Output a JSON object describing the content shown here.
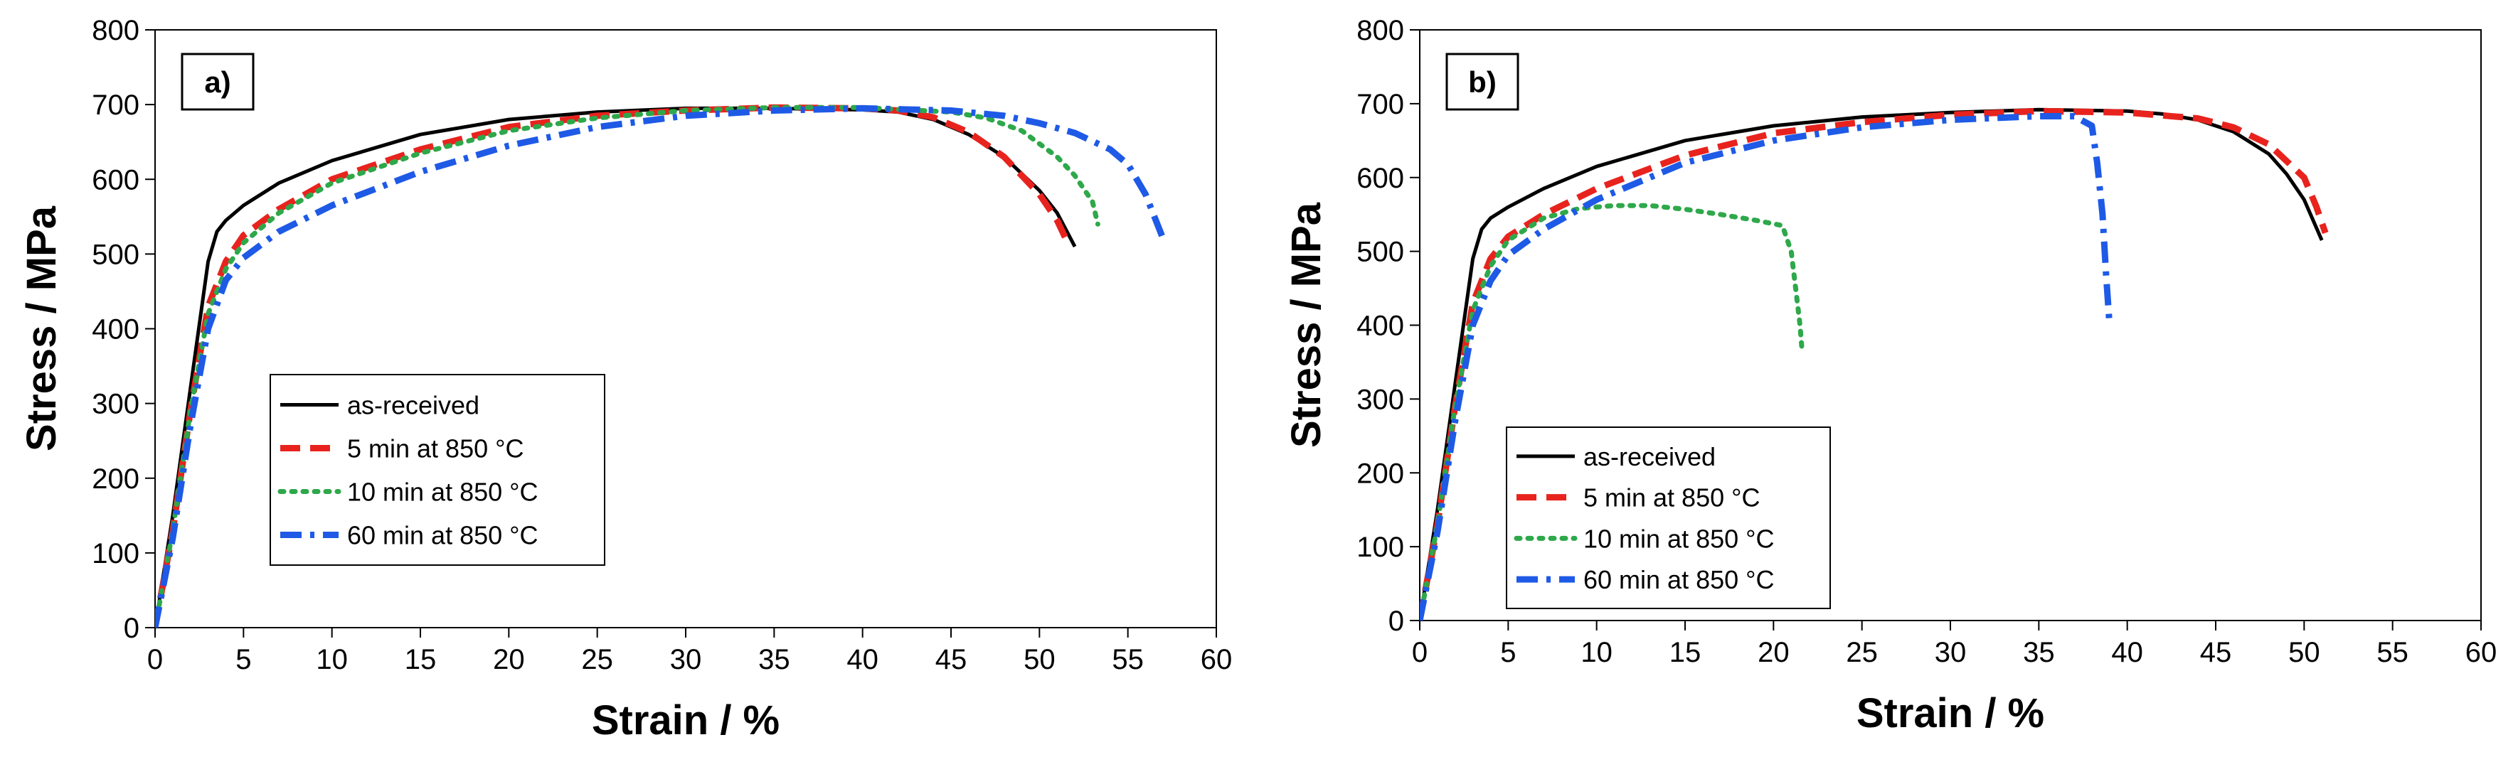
{
  "chart_data": [
    {
      "type": "line",
      "panel_label": "a)",
      "xlabel": "Strain / %",
      "ylabel": "Stress / MPa",
      "xlim": [
        0,
        60
      ],
      "ylim": [
        0,
        800
      ],
      "xticks": [
        "0",
        "5",
        "10",
        "15",
        "20",
        "25",
        "30",
        "35",
        "40",
        "45",
        "50",
        "55",
        "60"
      ],
      "yticks": [
        "0",
        "100",
        "200",
        "300",
        "400",
        "500",
        "600",
        "700",
        "800"
      ],
      "legend_position": "bottom-left",
      "series": [
        {
          "name": "as-received",
          "color": "#000000",
          "style": "solid",
          "x": [
            0,
            1,
            2,
            3,
            3.5,
            4,
            5,
            7,
            10,
            15,
            20,
            25,
            30,
            35,
            40,
            42,
            44,
            46,
            48,
            50,
            51,
            52
          ],
          "y": [
            0,
            150,
            320,
            490,
            530,
            545,
            565,
            595,
            625,
            660,
            680,
            690,
            695,
            695,
            693,
            690,
            680,
            660,
            630,
            585,
            555,
            510
          ]
        },
        {
          "name": "5 min at 850 °C",
          "color": "#e8231e",
          "style": "dash",
          "x": [
            0,
            1,
            2,
            3,
            4,
            5,
            7,
            10,
            15,
            20,
            25,
            30,
            35,
            40,
            42,
            44,
            46,
            48,
            50,
            51,
            51.5
          ],
          "y": [
            0,
            130,
            290,
            430,
            490,
            525,
            560,
            600,
            640,
            670,
            685,
            692,
            696,
            695,
            692,
            683,
            663,
            630,
            580,
            545,
            520
          ]
        },
        {
          "name": "10 min at 850 °C",
          "color": "#2ea84a",
          "style": "dot",
          "x": [
            0,
            1,
            2,
            3,
            4,
            5,
            7,
            10,
            15,
            20,
            25,
            30,
            35,
            40,
            45,
            47,
            49,
            51,
            52,
            53,
            53.3
          ],
          "y": [
            0,
            130,
            290,
            420,
            480,
            515,
            555,
            595,
            635,
            665,
            682,
            692,
            696,
            696,
            690,
            682,
            665,
            630,
            605,
            570,
            540
          ]
        },
        {
          "name": "60 min at 850 °C",
          "color": "#1e5ae6",
          "style": "dashdot",
          "x": [
            0,
            1,
            2,
            3,
            4,
            5,
            7,
            10,
            15,
            20,
            25,
            30,
            35,
            40,
            45,
            48,
            50,
            52,
            54,
            55,
            56,
            57
          ],
          "y": [
            0,
            120,
            270,
            400,
            465,
            495,
            530,
            565,
            610,
            645,
            670,
            685,
            692,
            695,
            692,
            685,
            675,
            662,
            640,
            620,
            580,
            520
          ]
        }
      ]
    },
    {
      "type": "line",
      "panel_label": "b)",
      "xlabel": "Strain / %",
      "ylabel": "Stress / MPa",
      "xlim": [
        0,
        60
      ],
      "ylim": [
        0,
        800
      ],
      "xticks": [
        "0",
        "5",
        "10",
        "15",
        "20",
        "25",
        "30",
        "35",
        "40",
        "45",
        "50",
        "55",
        "60"
      ],
      "yticks": [
        "0",
        "100",
        "200",
        "300",
        "400",
        "500",
        "600",
        "700",
        "800"
      ],
      "legend_position": "bottom-left",
      "series": [
        {
          "name": "as-received",
          "color": "#000000",
          "style": "solid",
          "x": [
            0,
            1,
            2,
            3,
            3.5,
            4,
            5,
            7,
            10,
            15,
            20,
            25,
            30,
            35,
            40,
            42,
            44,
            46,
            48,
            49,
            50,
            51
          ],
          "y": [
            0,
            150,
            320,
            490,
            530,
            545,
            560,
            585,
            615,
            650,
            670,
            682,
            688,
            692,
            690,
            686,
            678,
            662,
            632,
            605,
            570,
            515
          ]
        },
        {
          "name": "5 min at 850 °C",
          "color": "#e8231e",
          "style": "dash",
          "x": [
            0,
            1,
            2,
            3,
            4,
            5,
            7,
            10,
            15,
            20,
            25,
            30,
            35,
            40,
            44,
            46,
            48,
            50,
            50.7,
            51.2
          ],
          "y": [
            0,
            130,
            290,
            430,
            490,
            520,
            550,
            585,
            630,
            660,
            675,
            685,
            690,
            688,
            680,
            668,
            645,
            600,
            560,
            525
          ]
        },
        {
          "name": "10 min at 850 °C",
          "color": "#2ea84a",
          "style": "dot",
          "x": [
            0,
            1,
            2,
            3,
            4,
            5,
            7,
            9,
            11,
            13,
            15,
            17,
            19,
            20.5,
            21,
            21.3,
            21.5,
            21.6
          ],
          "y": [
            0,
            130,
            290,
            420,
            480,
            515,
            545,
            558,
            562,
            562,
            557,
            550,
            542,
            535,
            500,
            440,
            400,
            370
          ]
        },
        {
          "name": "60 min at 850 °C",
          "color": "#1e5ae6",
          "style": "dashdot",
          "x": [
            0,
            1,
            2,
            3,
            4,
            5,
            7,
            10,
            15,
            20,
            25,
            30,
            35,
            37,
            38,
            38.3,
            38.6,
            38.8,
            39
          ],
          "y": [
            0,
            120,
            270,
            400,
            460,
            495,
            530,
            570,
            620,
            650,
            668,
            678,
            683,
            683,
            670,
            620,
            550,
            470,
            400
          ]
        }
      ]
    }
  ]
}
